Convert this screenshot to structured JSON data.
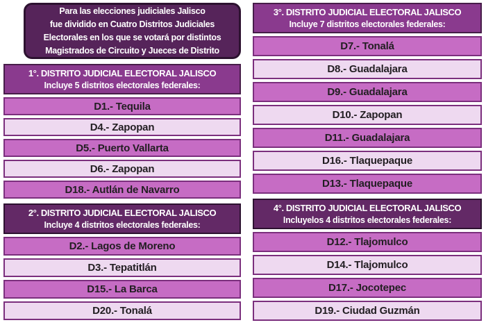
{
  "page": {
    "background": "#ffffff"
  },
  "colors": {
    "intro_bg": "#56245a",
    "intro_border": "#2d1230",
    "header_primary_bg": "#8a3a8e",
    "header_primary_border": "#471d49",
    "header_secondary_bg": "#632966",
    "header_secondary_border": "#2d1230",
    "row_odd_bg": "#c66cc4",
    "row_even_bg": "#eed9f0",
    "row_border": "#7b2f7d",
    "row_text": "#221e22",
    "header_text": "#ffffff"
  },
  "intro": {
    "lines": [
      "Para las elecciones judiciales Jalisco",
      "fue dividido en Cuatro Distritos Judiciales",
      "Electorales en los que se votará por distintos",
      "Magistrados de Circuito y Jueces de Distrito"
    ]
  },
  "sections": [
    {
      "id": 1,
      "style": "primary",
      "title": "1°. DISTRITO JUDICIAL ELECTORAL JALISCO",
      "subtitle": "Incluye 5 distritos electorales federales:",
      "rows": [
        "D1.- Tequila",
        "D4.- Zapopan",
        "D5.- Puerto Vallarta",
        "D6.- Zapopan",
        "D18.- Autlán de Navarro"
      ]
    },
    {
      "id": 2,
      "style": "secondary",
      "title": "2°. DISTRITO JUDICIAL ELECTORAL JALISCO",
      "subtitle": "Incluye 4 distritos electorales federales:",
      "rows": [
        "D2.- Lagos de Moreno",
        "D3.- Tepatitlán",
        "D15.- La Barca",
        "D20.- Tonalá"
      ]
    },
    {
      "id": 3,
      "style": "primary",
      "title": "3°. DISTRITO JUDICIAL ELECTORAL JALISCO",
      "subtitle": "Incluye 7 distritos electorales federales:",
      "rows": [
        "D7.- Tonalá",
        "D8.- Guadalajara",
        "D9.- Guadalajara",
        "D10.- Zapopan",
        "D11.- Guadalajara",
        "D16.- Tlaquepaque",
        "D13.- Tlaquepaque"
      ]
    },
    {
      "id": 4,
      "style": "secondary",
      "title": "4°. DISTRITO JUDICIAL ELECTORAL JALISCO",
      "subtitle": "Incluyelos 4 distritos electorales federales:",
      "rows": [
        "D12.- Tlajomulco",
        "D14.- Tlajomulco",
        "D17.- Jocotepec",
        "D19.- Ciudad Guzmán"
      ]
    }
  ],
  "layout": {
    "columns": [
      [
        0,
        1
      ],
      [
        2,
        3
      ]
    ]
  }
}
